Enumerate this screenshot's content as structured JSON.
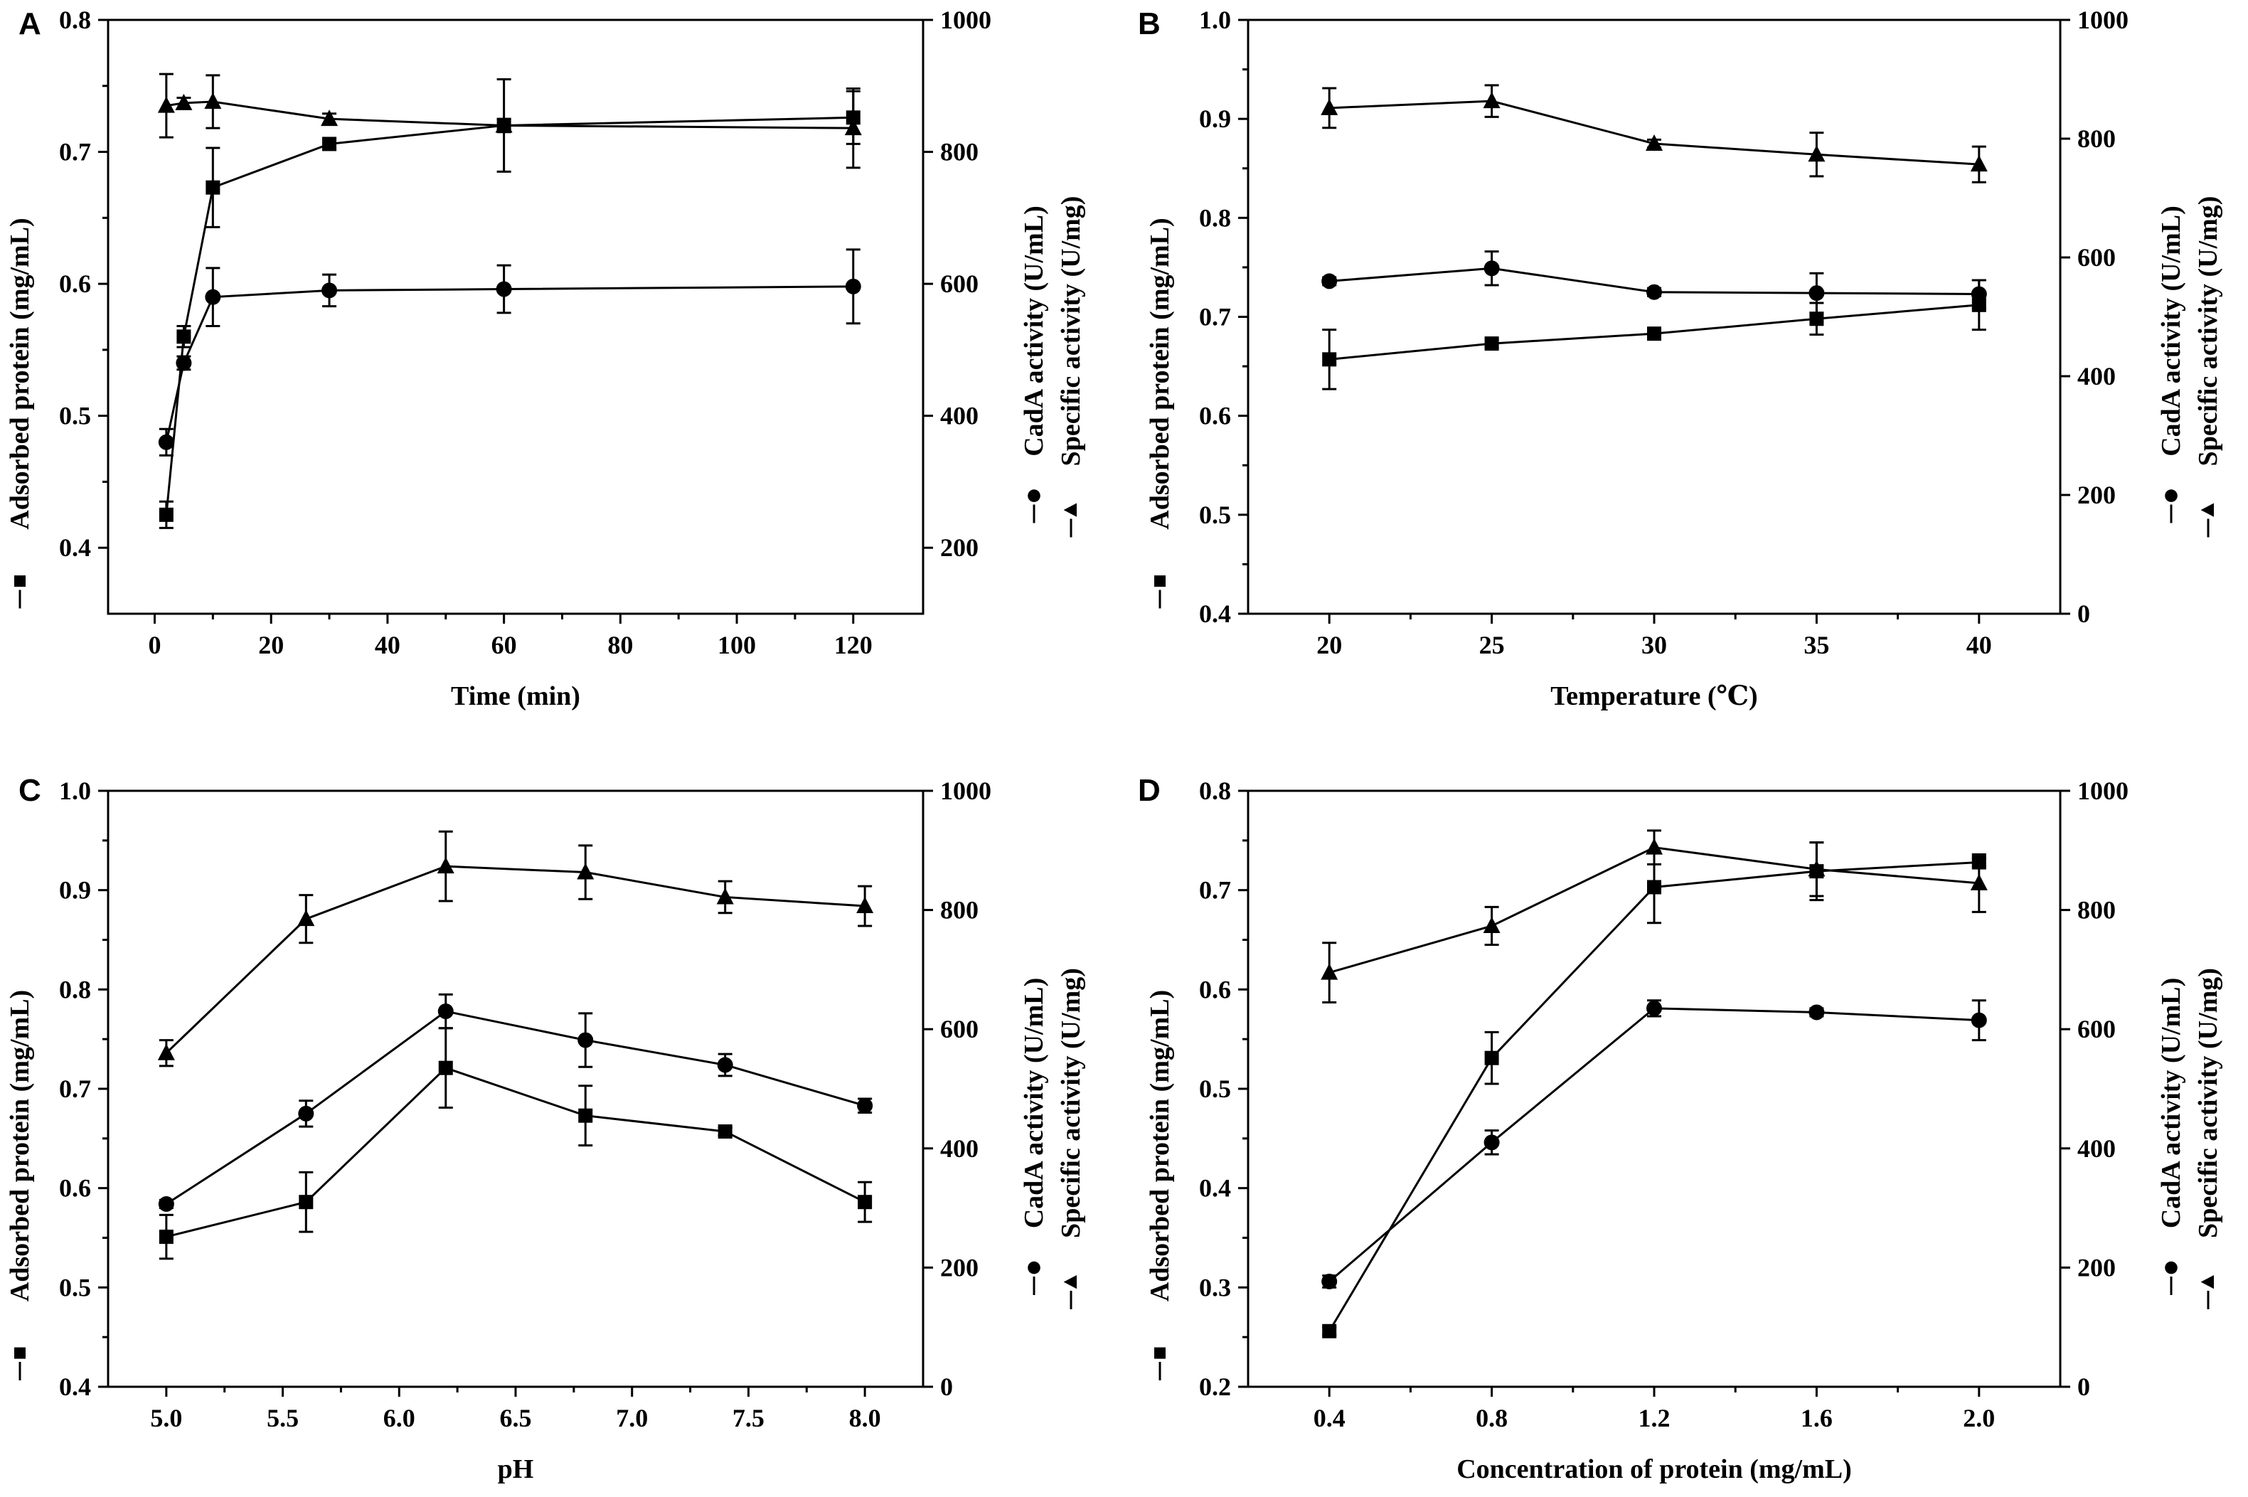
{
  "figure": {
    "background": "#ffffff",
    "ink": "#000000"
  },
  "chart_data": [
    {
      "letter": "A",
      "type": "line",
      "xlabel": "Time (min)",
      "ylabel_left": "Adsorbed protein (mg/mL)",
      "ylabel_right_1": "CadA activity (U/mL)",
      "ylabel_right_2": "Specific activity (U/mg)",
      "xlim": [
        -8,
        132
      ],
      "ylim_left": [
        0.35,
        0.8
      ],
      "ylim_right": [
        100,
        1000
      ],
      "xticks": [
        0,
        20,
        40,
        60,
        80,
        100,
        120
      ],
      "xtick_labels": [
        "0",
        "20",
        "40",
        "60",
        "80",
        "100",
        "120"
      ],
      "yticks_left": [
        0.4,
        0.5,
        0.6,
        0.7,
        0.8
      ],
      "ytick_labels_left": [
        "0.4",
        "0.5",
        "0.6",
        "0.7",
        "0.8"
      ],
      "yticks_right": [
        200,
        400,
        600,
        800,
        1000
      ],
      "ytick_labels_right": [
        "200",
        "400",
        "600",
        "800",
        "1000"
      ],
      "series": [
        {
          "name": "Adsorbed protein",
          "marker": "square",
          "axis": "left",
          "x": [
            2,
            5,
            10,
            30,
            60,
            120
          ],
          "values": [
            0.425,
            0.56,
            0.673,
            0.706,
            0.72,
            0.726
          ],
          "errors": [
            0.01,
            0.008,
            0.03,
            0.004,
            0.035,
            0.02
          ]
        },
        {
          "name": "CadA activity",
          "marker": "circle",
          "axis": "left",
          "x": [
            2,
            5,
            10,
            30,
            60,
            120
          ],
          "values": [
            0.48,
            0.54,
            0.59,
            0.595,
            0.596,
            0.598
          ],
          "errors": [
            0.01,
            0.005,
            0.022,
            0.012,
            0.018,
            0.028
          ]
        },
        {
          "name": "Specific activity",
          "marker": "triangle",
          "axis": "left",
          "x": [
            2,
            5,
            10,
            30,
            60,
            120
          ],
          "values": [
            0.735,
            0.737,
            0.738,
            0.725,
            0.72,
            0.718
          ],
          "errors": [
            0.024,
            0.004,
            0.02,
            0.004,
            0.005,
            0.03
          ]
        }
      ]
    },
    {
      "letter": "B",
      "type": "line",
      "xlabel": "Temperature (℃)",
      "ylabel_left": "Adsorbed protein (mg/mL)",
      "ylabel_right_1": "CadA activity (U/mL)",
      "ylabel_right_2": "Specific activity (U/mg)",
      "xlim": [
        17.5,
        42.5
      ],
      "ylim_left": [
        0.4,
        1.0
      ],
      "ylim_right": [
        0,
        1000
      ],
      "xticks": [
        20,
        25,
        30,
        35,
        40
      ],
      "xtick_labels": [
        "20",
        "25",
        "30",
        "35",
        "40"
      ],
      "yticks_left": [
        0.4,
        0.5,
        0.6,
        0.7,
        0.8,
        0.9,
        1.0
      ],
      "ytick_labels_left": [
        "0.4",
        "0.5",
        "0.6",
        "0.7",
        "0.8",
        "0.9",
        "1.0"
      ],
      "yticks_right": [
        0,
        200,
        400,
        600,
        800,
        1000
      ],
      "ytick_labels_right": [
        "0",
        "200",
        "400",
        "600",
        "800",
        "1000"
      ],
      "series": [
        {
          "name": "Adsorbed protein",
          "marker": "square",
          "axis": "left",
          "x": [
            20,
            25,
            30,
            35,
            40
          ],
          "values": [
            0.657,
            0.673,
            0.683,
            0.698,
            0.712
          ],
          "errors": [
            0.03,
            0.004,
            0.004,
            0.016,
            0.025
          ]
        },
        {
          "name": "CadA activity",
          "marker": "circle",
          "axis": "left",
          "x": [
            20,
            25,
            30,
            35,
            40
          ],
          "values": [
            0.736,
            0.749,
            0.725,
            0.724,
            0.723
          ],
          "errors": [
            0.004,
            0.017,
            0.004,
            0.02,
            0.014
          ]
        },
        {
          "name": "Specific activity",
          "marker": "triangle",
          "axis": "left",
          "x": [
            20,
            25,
            30,
            35,
            40
          ],
          "values": [
            0.911,
            0.918,
            0.875,
            0.864,
            0.854
          ],
          "errors": [
            0.02,
            0.016,
            0.004,
            0.022,
            0.018
          ]
        }
      ]
    },
    {
      "letter": "C",
      "type": "line",
      "xlabel": "pH",
      "ylabel_left": "Adsorbed protein (mg/mL)",
      "ylabel_right_1": "CadA activity (U/mL)",
      "ylabel_right_2": "Specific activity (U/mg)",
      "xlim": [
        4.75,
        8.25
      ],
      "ylim_left": [
        0.4,
        1.0
      ],
      "ylim_right": [
        0,
        1000
      ],
      "xticks": [
        5.0,
        5.5,
        6.0,
        6.5,
        7.0,
        7.5,
        8.0
      ],
      "xtick_labels": [
        "5.0",
        "5.5",
        "6.0",
        "6.5",
        "7.0",
        "7.5",
        "8.0"
      ],
      "yticks_left": [
        0.4,
        0.5,
        0.6,
        0.7,
        0.8,
        0.9,
        1.0
      ],
      "ytick_labels_left": [
        "0.4",
        "0.5",
        "0.6",
        "0.7",
        "0.8",
        "0.9",
        "1.0"
      ],
      "yticks_right": [
        0,
        200,
        400,
        600,
        800,
        1000
      ],
      "ytick_labels_right": [
        "0",
        "200",
        "400",
        "600",
        "800",
        "1000"
      ],
      "series": [
        {
          "name": "Adsorbed protein",
          "marker": "square",
          "axis": "left",
          "x": [
            5.0,
            5.6,
            6.2,
            6.8,
            7.4,
            8.0
          ],
          "values": [
            0.551,
            0.586,
            0.721,
            0.673,
            0.657,
            0.586
          ],
          "errors": [
            0.022,
            0.03,
            0.04,
            0.03,
            0.004,
            0.02
          ]
        },
        {
          "name": "CadA activity",
          "marker": "circle",
          "axis": "left",
          "x": [
            5.0,
            5.6,
            6.2,
            6.8,
            7.4,
            8.0
          ],
          "values": [
            0.584,
            0.675,
            0.778,
            0.749,
            0.724,
            0.683
          ],
          "errors": [
            0.004,
            0.013,
            0.017,
            0.027,
            0.011,
            0.007
          ]
        },
        {
          "name": "Specific activity",
          "marker": "triangle",
          "axis": "left",
          "x": [
            5.0,
            5.6,
            6.2,
            6.8,
            7.4,
            8.0
          ],
          "values": [
            0.736,
            0.871,
            0.924,
            0.918,
            0.893,
            0.884
          ],
          "errors": [
            0.013,
            0.024,
            0.035,
            0.027,
            0.016,
            0.02
          ]
        }
      ]
    },
    {
      "letter": "D",
      "type": "line",
      "xlabel": "Concentration of protein (mg/mL)",
      "ylabel_left": "Adsorbed protein (mg/mL)",
      "ylabel_right_1": "CadA activity (U/mL)",
      "ylabel_right_2": "Specific activity (U/mg)",
      "xlim": [
        0.2,
        2.2
      ],
      "ylim_left": [
        0.2,
        0.8
      ],
      "ylim_right": [
        0,
        1000
      ],
      "xticks": [
        0.4,
        0.8,
        1.2,
        1.6,
        2.0
      ],
      "xtick_labels": [
        "0.4",
        "0.8",
        "1.2",
        "1.6",
        "2.0"
      ],
      "yticks_left": [
        0.2,
        0.3,
        0.4,
        0.5,
        0.6,
        0.7,
        0.8
      ],
      "ytick_labels_left": [
        "0.2",
        "0.3",
        "0.4",
        "0.5",
        "0.6",
        "0.7",
        "0.8"
      ],
      "yticks_right": [
        0,
        200,
        400,
        600,
        800,
        1000
      ],
      "ytick_labels_right": [
        "0",
        "200",
        "400",
        "600",
        "800",
        "1000"
      ],
      "series": [
        {
          "name": "Adsorbed protein",
          "marker": "square",
          "axis": "left",
          "x": [
            0.4,
            0.8,
            1.2,
            1.6,
            2.0
          ],
          "values": [
            0.256,
            0.531,
            0.703,
            0.719,
            0.728
          ],
          "errors": [
            0.004,
            0.026,
            0.036,
            0.029,
            0.004
          ]
        },
        {
          "name": "CadA activity",
          "marker": "circle",
          "axis": "left",
          "x": [
            0.4,
            0.8,
            1.2,
            1.6,
            2.0
          ],
          "values": [
            0.306,
            0.446,
            0.581,
            0.577,
            0.569
          ],
          "errors": [
            0.006,
            0.012,
            0.008,
            0.004,
            0.02
          ]
        },
        {
          "name": "Specific activity",
          "marker": "triangle",
          "axis": "left",
          "x": [
            0.4,
            0.8,
            1.2,
            1.6,
            2.0
          ],
          "values": [
            0.617,
            0.664,
            0.743,
            0.721,
            0.707
          ],
          "errors": [
            0.03,
            0.019,
            0.017,
            0.027,
            0.029
          ]
        }
      ]
    }
  ]
}
